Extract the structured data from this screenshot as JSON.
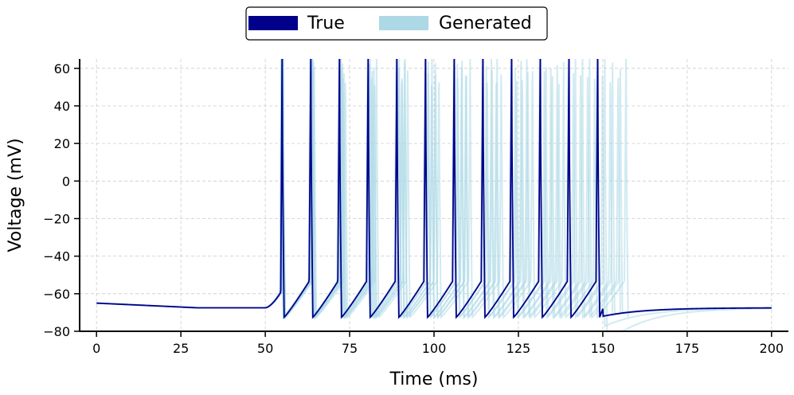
{
  "chart_data": {
    "type": "line",
    "title": "",
    "xlabel": "Time (ms)",
    "ylabel": "Voltage (mV)",
    "xlim": [
      -5,
      205
    ],
    "ylim": [
      -80,
      65
    ],
    "x_ticks": [
      0,
      25,
      50,
      75,
      100,
      125,
      150,
      175,
      200
    ],
    "y_ticks": [
      -80,
      -60,
      -40,
      -20,
      0,
      20,
      40,
      60
    ],
    "grid": true,
    "legend": {
      "placement": "top-center, above plot",
      "entries": [
        "True",
        "Generated"
      ]
    },
    "colors": {
      "true": "#00008b",
      "generated": "#add8e6"
    },
    "series": [
      {
        "name": "True",
        "rest_potential_start": -65,
        "rest_potential_end": -67.5,
        "stimulus_onset": 50,
        "stimulus_offset": 150,
        "spike_peak": 65,
        "afterhyperpolarization_min": -72.5,
        "spike_times": [
          55,
          63.5,
          72,
          80.5,
          89,
          97.5,
          106,
          114.5,
          123,
          131.5,
          140,
          148.5
        ]
      },
      {
        "name": "Generated",
        "n_samples": 8,
        "last_spike_time_range": [
          146,
          157.5
        ],
        "description_spread_ms": [
          0,
          9
        ]
      }
    ]
  }
}
